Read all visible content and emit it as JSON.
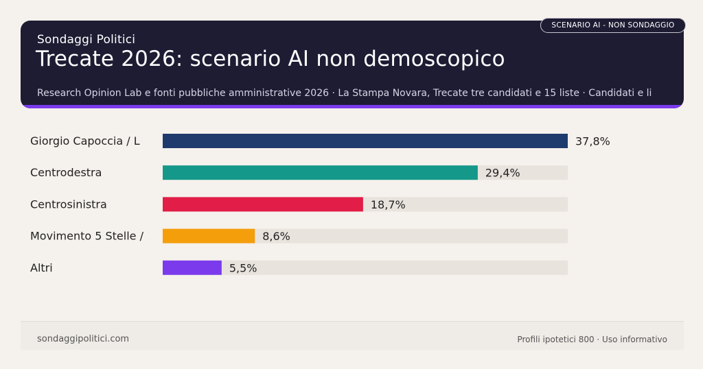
{
  "header": {
    "kicker": "Sondaggi Politici",
    "title": "Trecate 2026: scenario AI non demoscopico",
    "subtitle": "Research Opinion Lab e fonti pubbliche amministrative 2026 · La Stampa Novara, Trecate tre candidati e 15 liste · Candidati e li",
    "badge": "SCENARIO AI - NON SONDAGGIO"
  },
  "colors": {
    "background": "#f5f1ec",
    "header_bg": "#1d1c33",
    "accent": "#7c3aed",
    "track": "#e8e3dd"
  },
  "chart_data": {
    "type": "bar",
    "orientation": "horizontal",
    "categories": [
      "Giorgio Capoccia / L",
      "Centrodestra",
      "Centrosinistra",
      "Movimento 5 Stelle /",
      "Altri"
    ],
    "values": [
      37.8,
      29.4,
      18.7,
      8.6,
      5.5
    ],
    "value_labels": [
      "37,8%",
      "29,4%",
      "18,7%",
      "8,6%",
      "5,5%"
    ],
    "colors": [
      "#1f3a6d",
      "#14988a",
      "#e11d48",
      "#f59e0b",
      "#7c3aed"
    ],
    "xlim": [
      0,
      37.8
    ],
    "title": "",
    "xlabel": "",
    "ylabel": "",
    "grid": false
  },
  "footer": {
    "site": "sondaggipolitici.com",
    "note": "Profili ipotetici 800 · Uso informativo"
  }
}
